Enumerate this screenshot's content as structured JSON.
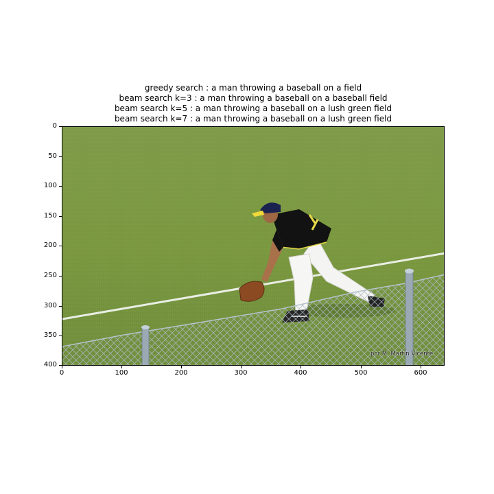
{
  "figure": {
    "captions": [
      "greedy search : a man throwing a baseball on a field",
      "beam search k=3 :  a man throwing a baseball on a baseball field",
      "beam search k=5 :  a man throwing a baseball on a lush green field",
      "beam search k=7 :  a man throwing a baseball on a lush green field"
    ],
    "x_ticks": [
      "0",
      "100",
      "200",
      "300",
      "400",
      "500",
      "600"
    ],
    "y_ticks": [
      "0",
      "50",
      "100",
      "150",
      "200",
      "250",
      "300",
      "350",
      "400"
    ],
    "watermark": "por M. Martin Vicente"
  },
  "colors": {
    "grass": "#7c9a44",
    "fence": "#9aa9b4",
    "jersey": "#111111",
    "cap": "#1a2350",
    "glove": "#8b4a22"
  }
}
